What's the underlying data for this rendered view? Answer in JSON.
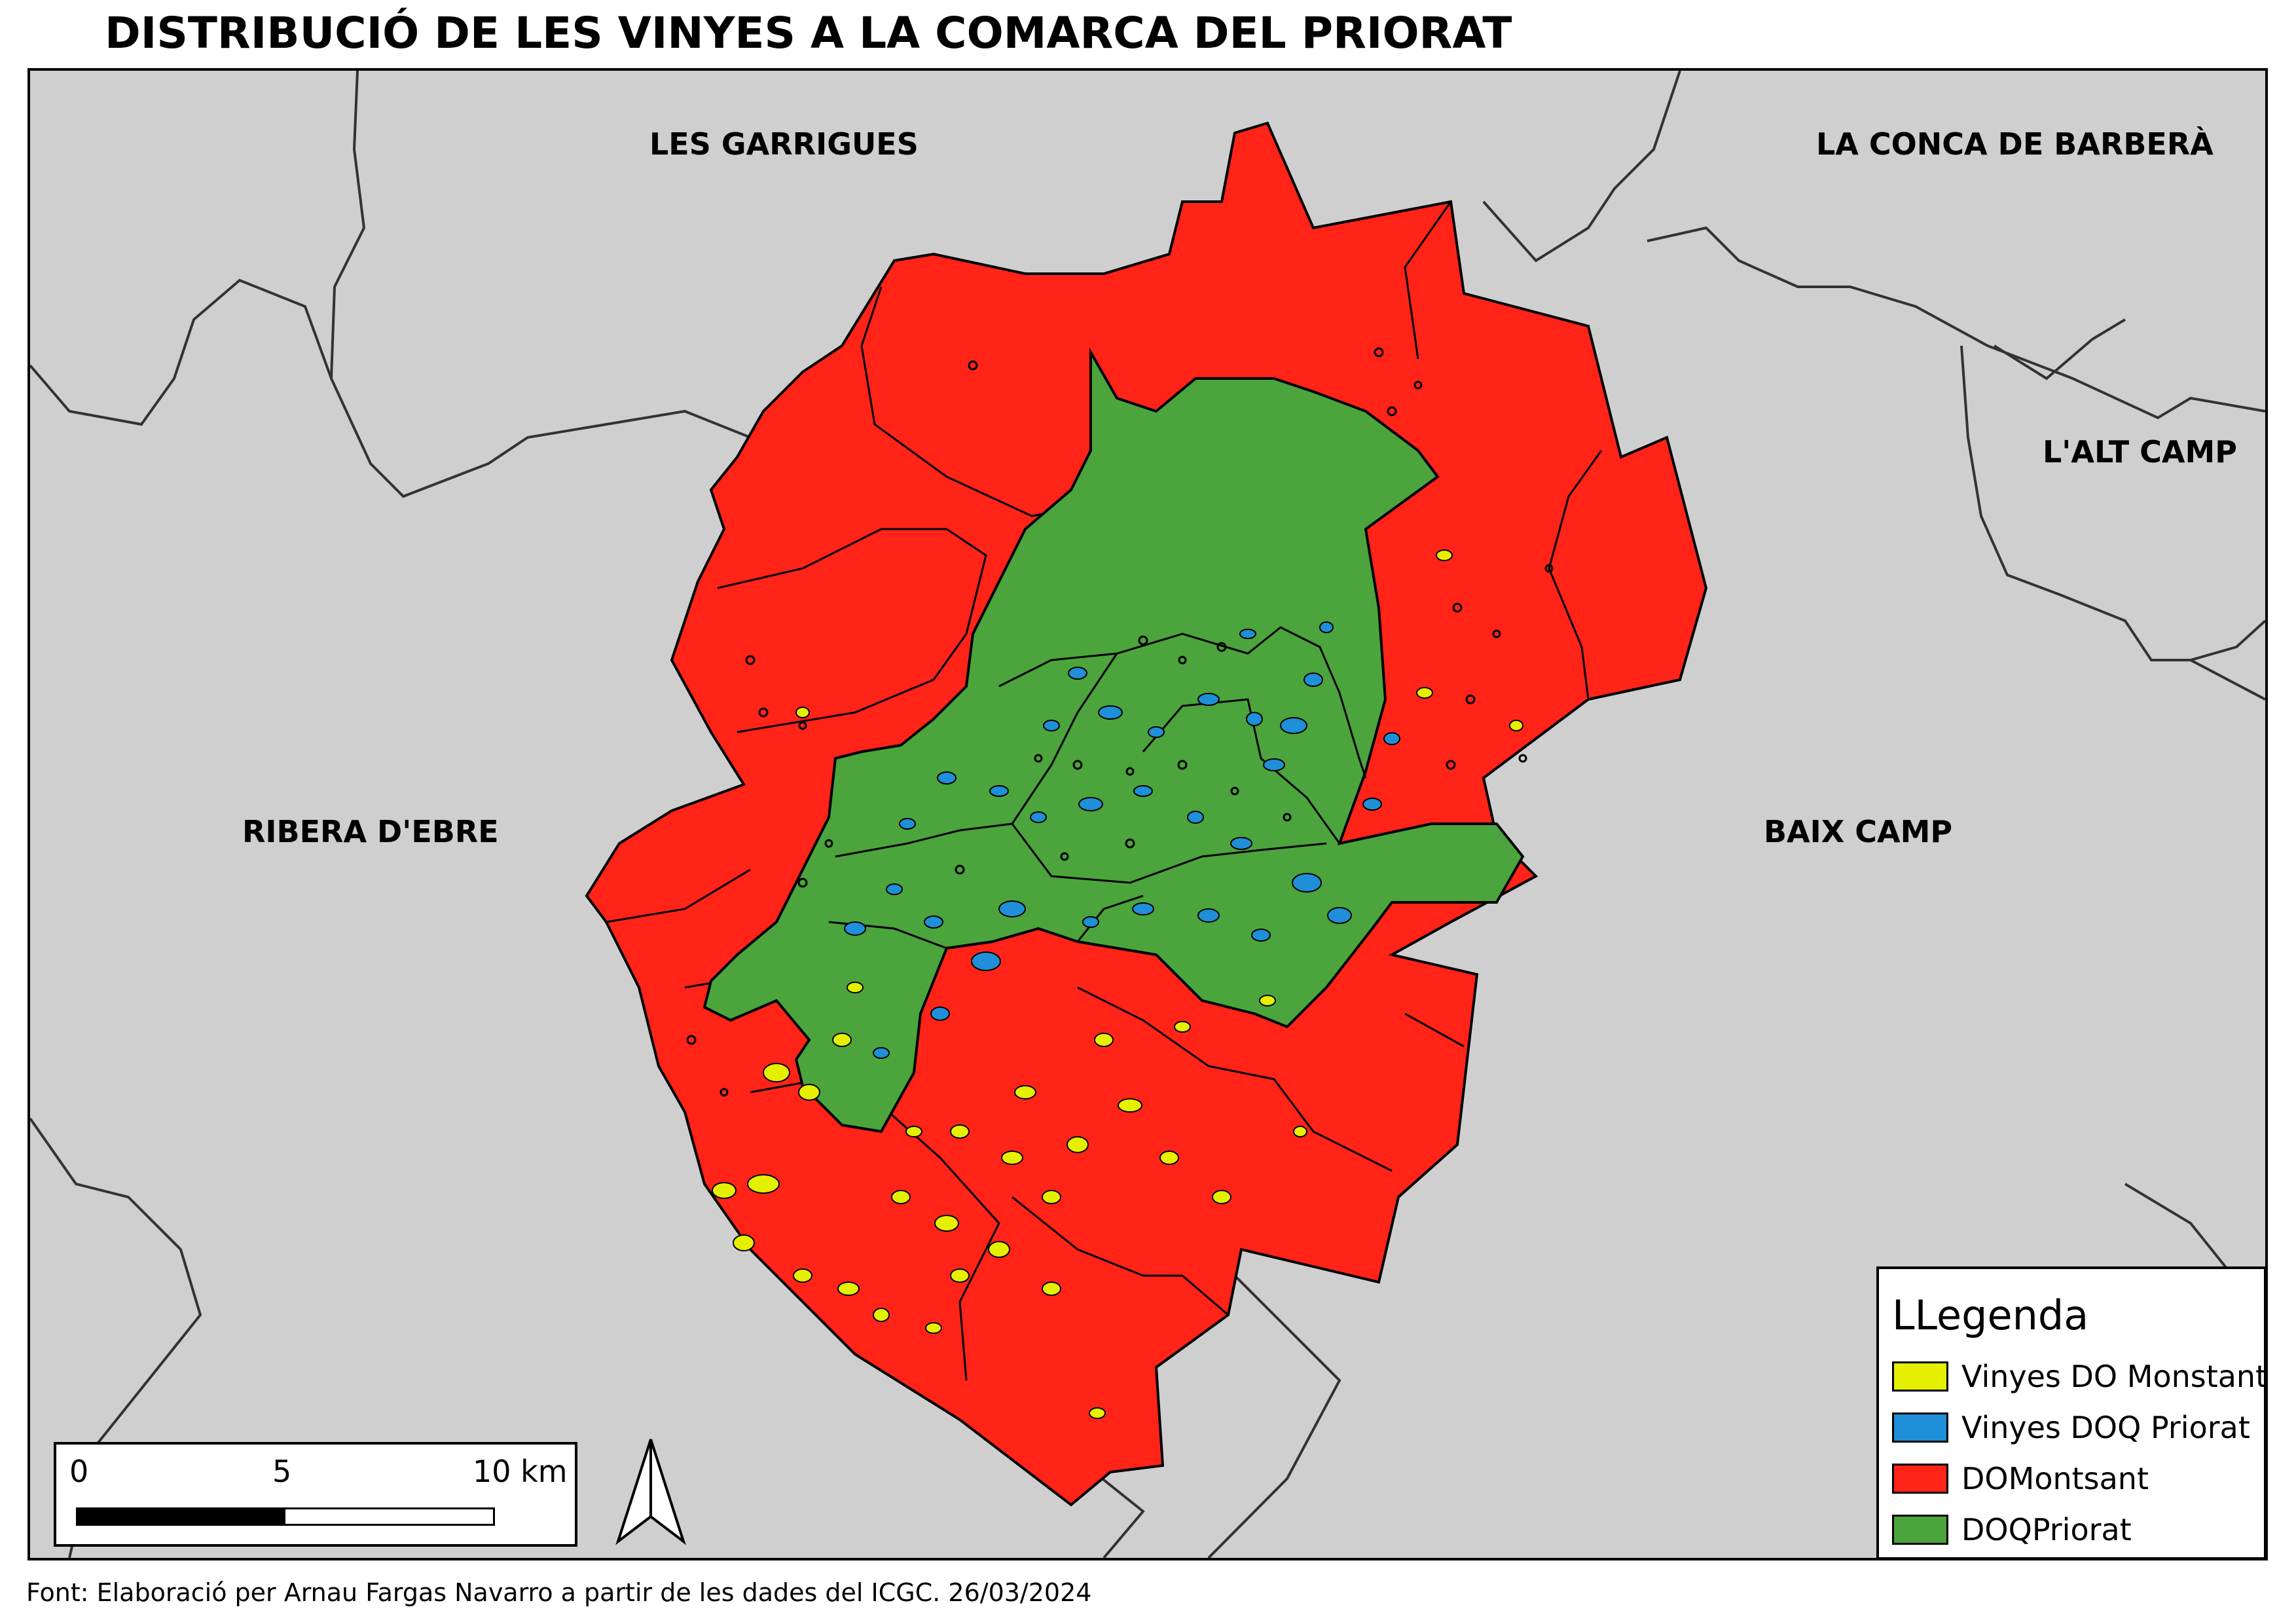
{
  "title": "DISTRIBUCIÓ DE LES VINYES A LA COMARCA DEL PRIORAT",
  "regions": {
    "garrigues": "LES GARRIGUES",
    "conca": "LA CONCA DE BARBERÀ",
    "alt_camp": "L'ALT CAMP",
    "ribera": "RIBERA D'EBRE",
    "baix_camp": "BAIX CAMP"
  },
  "legend": {
    "title": "LLegenda",
    "items": [
      {
        "label": "Vinyes DO Monstant",
        "color": "#e5f000"
      },
      {
        "label": "Vinyes DOQ Priorat",
        "color": "#1e8fd8"
      },
      {
        "label": "DOMontsant",
        "color": "#ff2318"
      },
      {
        "label": "DOQPriorat",
        "color": "#4ca43c"
      }
    ]
  },
  "scale": {
    "labels": [
      "0",
      "5",
      "10 km"
    ]
  },
  "colors": {
    "background": "#cfcfcf",
    "do_montsant": "#ff2318",
    "doq_priorat": "#4ca43c",
    "vinyes_montsant": "#e5f000",
    "vinyes_priorat": "#1e8fd8",
    "sea": "#1e8fd8"
  },
  "north_arrow_icon": "north-arrow-icon",
  "source_note": "Font: Elaboració per Arnau Fargas Navarro a partir de les dades del ICGC. 26/03/2024"
}
